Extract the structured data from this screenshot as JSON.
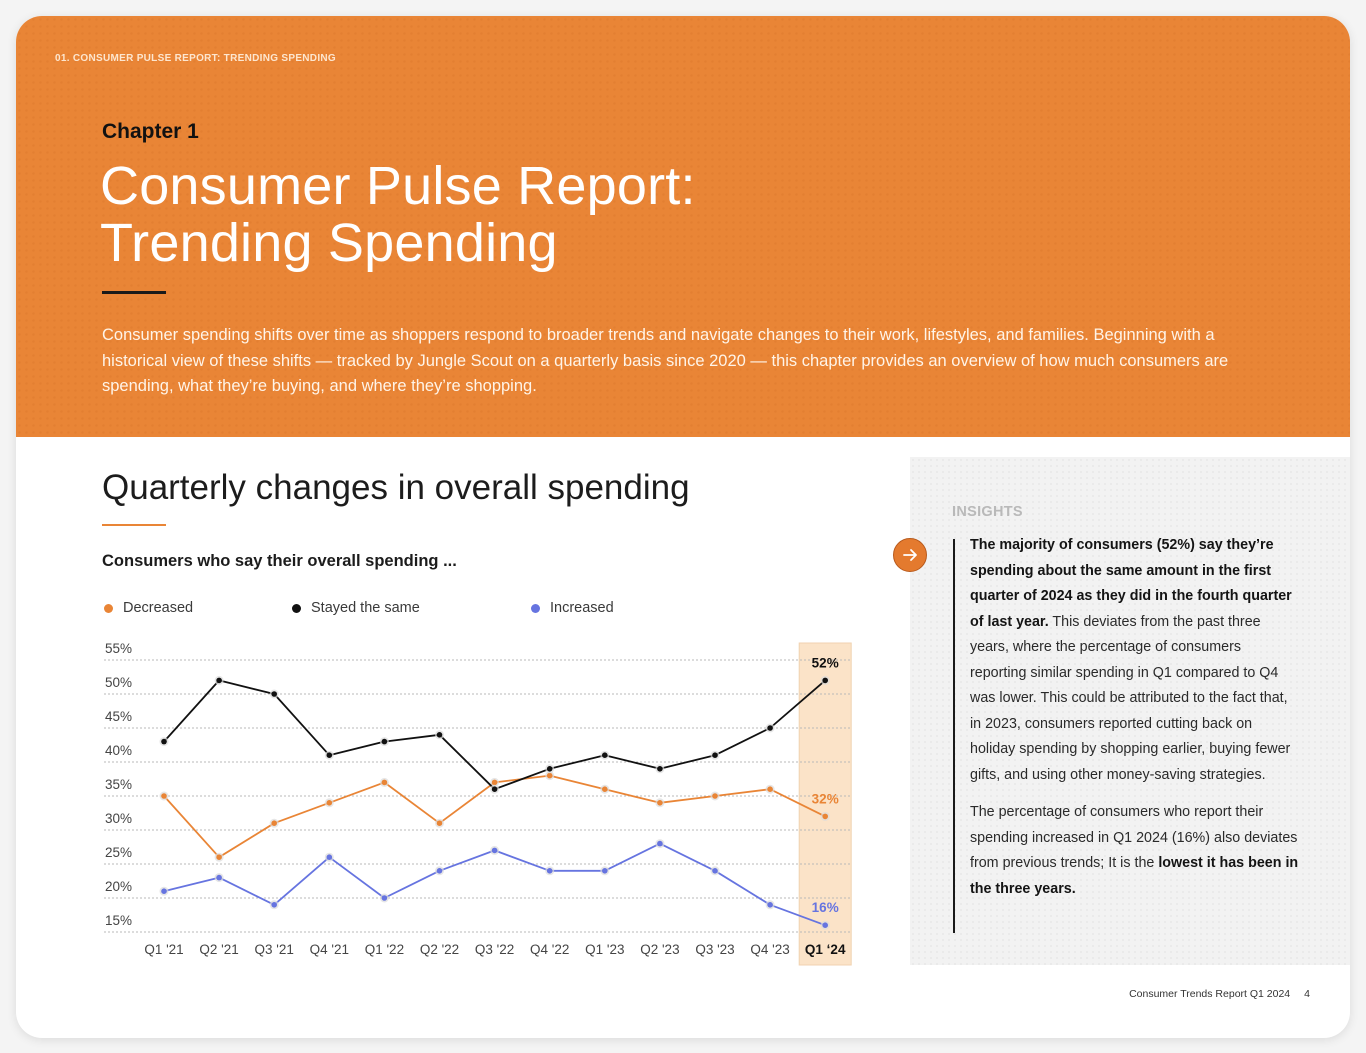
{
  "header": {
    "eyebrow": "01. CONSUMER PULSE REPORT: TRENDING SPENDING",
    "chapter": "Chapter 1",
    "title_line1": "Consumer Pulse Report:",
    "title_line2": "Trending Spending",
    "intro": "Consumer spending shifts over time as shoppers respond to broader trends and navigate changes to their work, lifestyles, and families. Beginning with a historical view of these shifts — tracked by Jungle Scout on a quarterly basis since 2020 — this chapter provides an overview of how much consumers are spending, what they’re buying, and where they’re shopping."
  },
  "section": {
    "title": "Quarterly changes in overall spending",
    "subtitle": "Consumers who say their overall spending ..."
  },
  "colors": {
    "brand_orange": "#e98536",
    "decreased": "#e98536",
    "stayed": "#111111",
    "increased": "#6674e0",
    "highlight": "#fbe3c8"
  },
  "chart_data": {
    "type": "line",
    "title": "Consumers who say their overall spending ...",
    "xlabel": "",
    "ylabel": "",
    "ylim": [
      15,
      55
    ],
    "yticks": [
      55,
      50,
      45,
      40,
      35,
      30,
      25,
      20,
      15
    ],
    "ytick_labels": [
      "55%",
      "50%",
      "45%",
      "40%",
      "35%",
      "30%",
      "25%",
      "20%",
      "15%"
    ],
    "categories": [
      "Q1 '21",
      "Q2 '21",
      "Q3 '21",
      "Q4 '21",
      "Q1 '22",
      "Q2 '22",
      "Q3 '22",
      "Q4 '22",
      "Q1 '23",
      "Q2 '23",
      "Q3 '23",
      "Q4 '23",
      "Q1 ‘24"
    ],
    "highlight_category": "Q1 ‘24",
    "grid": true,
    "legend_position": "top-left",
    "series": [
      {
        "name": "Decreased",
        "color": "#e98536",
        "values": [
          35,
          26,
          31,
          34,
          37,
          31,
          37,
          38,
          36,
          34,
          35,
          36,
          32
        ],
        "end_label": "32%"
      },
      {
        "name": "Stayed the same",
        "color": "#111111",
        "values": [
          43,
          52,
          50,
          41,
          43,
          44,
          36,
          39,
          41,
          39,
          41,
          45,
          52
        ],
        "end_label": "52%"
      },
      {
        "name": "Increased",
        "color": "#6674e0",
        "values": [
          21,
          23,
          19,
          26,
          20,
          24,
          27,
          24,
          24,
          28,
          24,
          19,
          16
        ],
        "end_label": "16%"
      }
    ]
  },
  "insights": {
    "label": "INSIGHTS",
    "p1_bold": "The majority of consumers (52%) say they’re spending about the same amount in the first quarter of 2024 as they did in the fourth quarter of last year.",
    "p1_rest": " This deviates from the past three years, where the percentage of consumers reporting similar spending in Q1 compared to Q4 was lower. This could be attributed to the fact that, in 2023, consumers reported cutting back on holiday spending by shopping earlier, buying fewer gifts, and using other money-saving strategies.",
    "p2_start": "The percentage of consumers who report their spending increased in Q1 2024 (16%) also deviates from previous trends; It is the ",
    "p2_bold": "lowest it has been in the three years."
  },
  "footer": {
    "report_name": "Consumer Trends Report Q1 2024",
    "page_number": "4"
  }
}
